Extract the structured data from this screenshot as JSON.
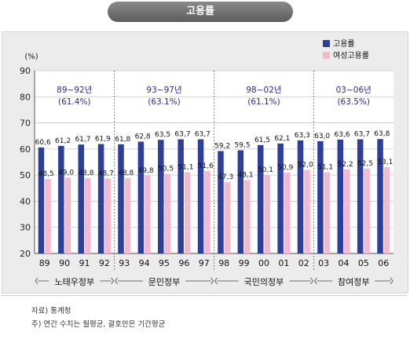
{
  "title": "고용률",
  "footer": {
    "source": "자료) 통계청",
    "note": "주)  연간 수치는 월평균, 괄호안은 기간평균"
  },
  "colors": {
    "employment": "#2d3f99",
    "female": "#f5b9cf",
    "period_label": "#2b2b8a"
  },
  "chart_data": {
    "type": "bar",
    "y_unit_label": "(%)",
    "ylim": [
      20,
      90
    ],
    "yticks": [
      20,
      30,
      40,
      50,
      60,
      70,
      80,
      90
    ],
    "grid": true,
    "legend_position": "top-right",
    "categories": [
      "89",
      "90",
      "91",
      "92",
      "93",
      "94",
      "95",
      "96",
      "97",
      "98",
      "99",
      "00",
      "01",
      "02",
      "03",
      "04",
      "05",
      "06"
    ],
    "value_labels": {
      "employment": [
        "60,6",
        "61,2",
        "61,7",
        "61,9",
        "61,8",
        "62,8",
        "63,5",
        "63,7",
        "63,7",
        "59,2",
        "59,5",
        "61,5",
        "62,1",
        "63,3",
        "63,0",
        "63,6",
        "63,7",
        "63,8"
      ],
      "female": [
        "48,5",
        "49,0",
        "48,8",
        "48,7",
        "48,8",
        "49,8",
        "50,5",
        "51,1",
        "51,6",
        "47,3",
        "48,1",
        "50,1",
        "50,9",
        "52,0",
        "51,1",
        "52,2",
        "52,5",
        "53,1"
      ]
    },
    "series": [
      {
        "name": "고용률",
        "key": "employment",
        "values": [
          60.6,
          61.2,
          61.7,
          61.9,
          61.8,
          62.8,
          63.5,
          63.7,
          63.7,
          59.2,
          59.5,
          61.5,
          62.1,
          63.3,
          63.0,
          63.6,
          63.7,
          63.8
        ]
      },
      {
        "name": "여성고용률",
        "key": "female",
        "values": [
          48.5,
          49.0,
          48.8,
          48.7,
          48.8,
          49.8,
          50.5,
          51.1,
          51.6,
          47.3,
          48.1,
          50.1,
          50.9,
          52.0,
          51.1,
          52.2,
          52.5,
          53.1
        ]
      }
    ],
    "groups": [
      {
        "name": "노태우정부",
        "period": "89~92년",
        "average": "(61.4%)",
        "start": 0,
        "end": 3
      },
      {
        "name": "문민정부",
        "period": "93~97년",
        "average": "(63.1%)",
        "start": 4,
        "end": 8
      },
      {
        "name": "국민의정부",
        "period": "98~02년",
        "average": "(61.1%)",
        "start": 9,
        "end": 13
      },
      {
        "name": "참여정부",
        "period": "03~06년",
        "average": "(63.5%)",
        "start": 14,
        "end": 17
      }
    ]
  }
}
